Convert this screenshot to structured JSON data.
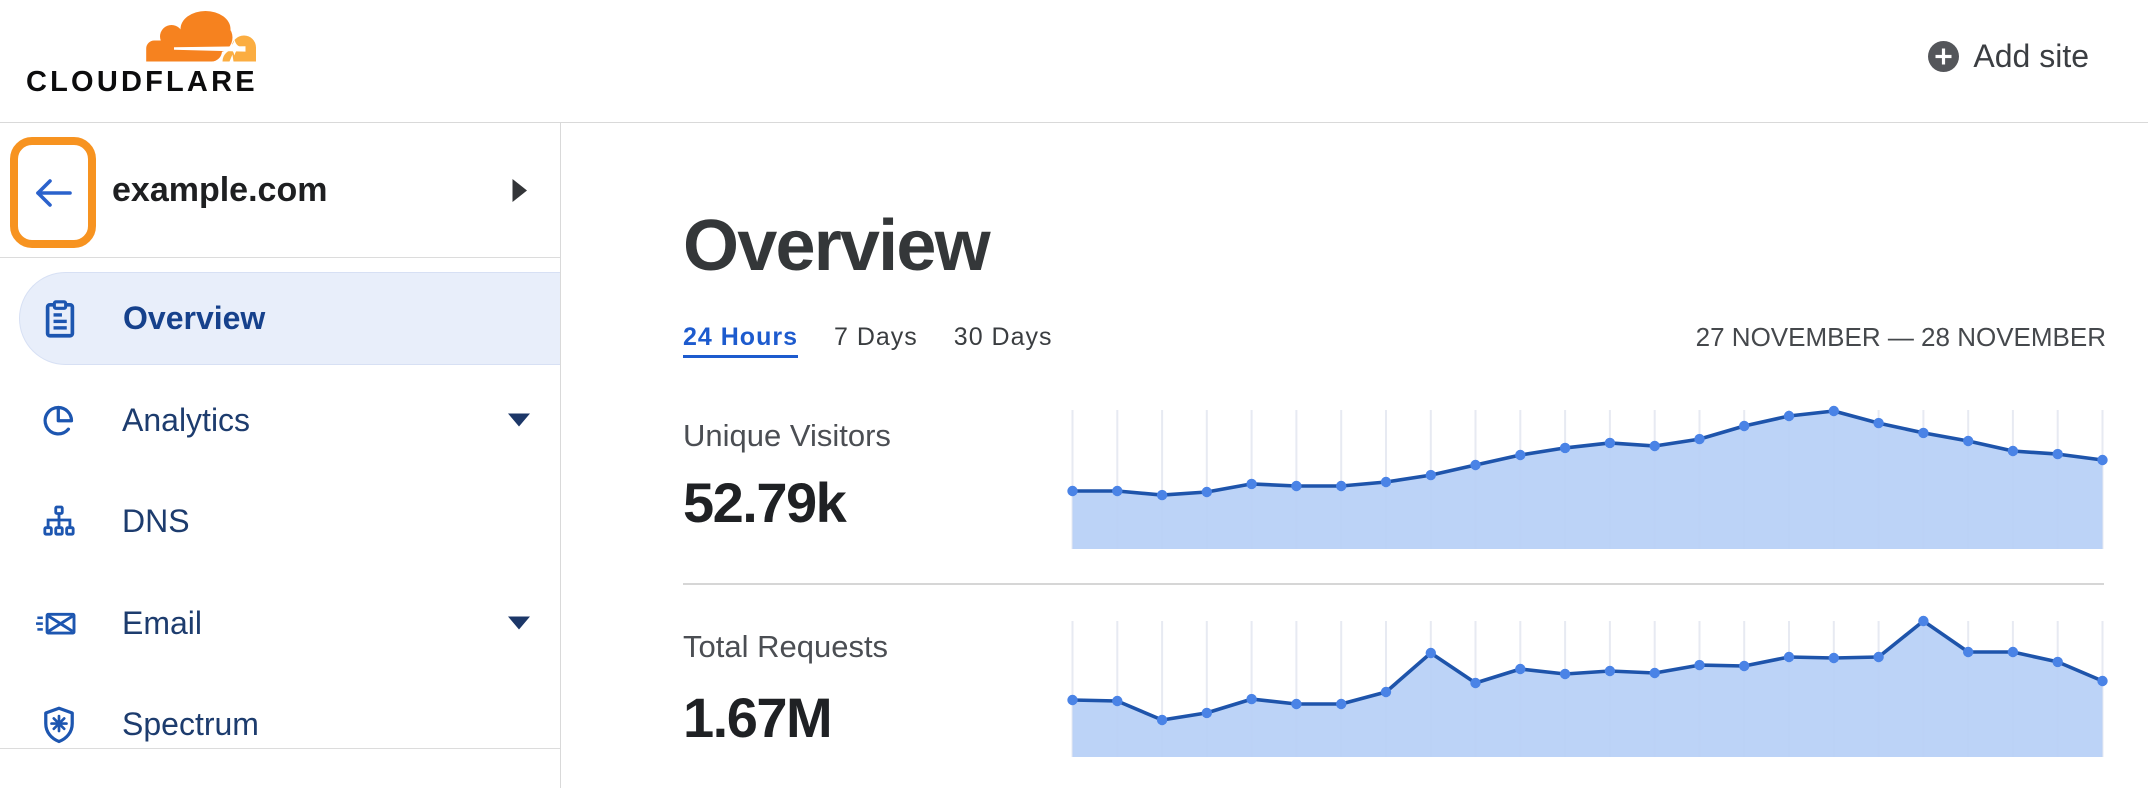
{
  "header": {
    "brand": {
      "wordmark": "CLOUDFLARE"
    },
    "add_site": {
      "label": "Add site"
    }
  },
  "sidebar": {
    "site": {
      "name": "example.com"
    },
    "items": [
      {
        "label": "Overview",
        "icon": "clipboard-icon",
        "active": true,
        "caret": false
      },
      {
        "label": "Analytics",
        "icon": "pie-chart-icon",
        "active": false,
        "caret": true
      },
      {
        "label": "DNS",
        "icon": "sitemap-icon",
        "active": false,
        "caret": false
      },
      {
        "label": "Email",
        "icon": "email-icon",
        "active": false,
        "caret": true
      },
      {
        "label": "Spectrum",
        "icon": "shield-icon",
        "active": false,
        "caret": false
      }
    ]
  },
  "main": {
    "title": "Overview",
    "tabs": [
      {
        "label": "24 Hours",
        "active": true
      },
      {
        "label": "7 Days",
        "active": false
      },
      {
        "label": "30 Days",
        "active": false
      }
    ],
    "date_range": "27 NOVEMBER — 28 NOVEMBER",
    "stats": [
      {
        "label": "Unique Visitors",
        "value": "52.79k"
      },
      {
        "label": "Total Requests",
        "value": "1.67M"
      }
    ]
  },
  "colors": {
    "brand_orange": "#f6821f",
    "brand_orange_light": "#fbad41",
    "highlight_ring_orange": "#f79320",
    "active_pill_bg": "#e8eefa",
    "nav_text": "#1d3c6e",
    "nav_text_active": "#16418c",
    "tab_active_blue": "#1d5bce",
    "chart": {
      "line": "#1e54ab",
      "dot": "#4a83e6",
      "fill": "#b7d0f6",
      "grid": "#e7eaf2"
    }
  },
  "chart_data": [
    {
      "type": "area",
      "title": "Unique Visitors",
      "stat_value": "52.79k",
      "x_unit": "hour (24 Hours view, 27 November — 28 November)",
      "y_unit": "percent of chart height (no y-axis labels shown)",
      "x": [
        1,
        2,
        3,
        4,
        5,
        6,
        7,
        8,
        9,
        10,
        11,
        12,
        13,
        14,
        15,
        16,
        17,
        18,
        19,
        20,
        21,
        22,
        23,
        24
      ],
      "values_pct": [
        41.7,
        41.7,
        38.8,
        41.0,
        46.8,
        45.3,
        45.3,
        48.2,
        53.2,
        60.4,
        67.6,
        72.7,
        76.3,
        74.1,
        79.1,
        88.5,
        95.7,
        99.3,
        90.6,
        83.5,
        77.7,
        70.5,
        68.3,
        64.0
      ],
      "grid": "vertical-only",
      "legend": "none"
    },
    {
      "type": "area",
      "title": "Total Requests",
      "stat_value": "1.67M",
      "x_unit": "hour (24 Hours view, 27 November — 28 November)",
      "y_unit": "percent of chart height (no y-axis labels shown)",
      "x": [
        1,
        2,
        3,
        4,
        5,
        6,
        7,
        8,
        9,
        10,
        11,
        12,
        13,
        14,
        15,
        16,
        17,
        18,
        19,
        20,
        21,
        22,
        23,
        24
      ],
      "values_pct": [
        41.9,
        41.2,
        27.2,
        32.4,
        42.6,
        39.0,
        39.0,
        47.8,
        76.5,
        54.4,
        64.7,
        61.0,
        63.2,
        61.8,
        67.6,
        66.9,
        73.5,
        72.8,
        73.5,
        100.0,
        77.2,
        77.2,
        69.9,
        55.9
      ],
      "grid": "vertical-only",
      "legend": "none"
    }
  ]
}
